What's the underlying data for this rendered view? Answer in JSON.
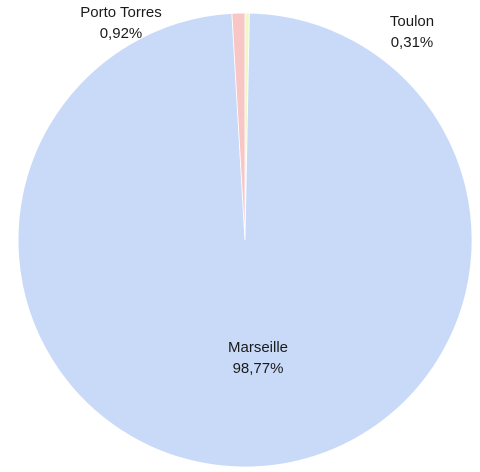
{
  "chart_data": {
    "type": "pie",
    "title": "",
    "slices": [
      {
        "label": "Marseille",
        "value": 98.77,
        "display": "98,77%",
        "color": "#c9daf8"
      },
      {
        "label": "Porto Torres",
        "value": 0.92,
        "display": "0,92%",
        "color": "#f9c6c6"
      },
      {
        "label": "Toulon",
        "value": 0.31,
        "display": "0,31%",
        "color": "#eef7c6"
      }
    ],
    "start_angle_deg": 0,
    "direction": "clockwise",
    "legend": "none",
    "data_labels": true
  }
}
